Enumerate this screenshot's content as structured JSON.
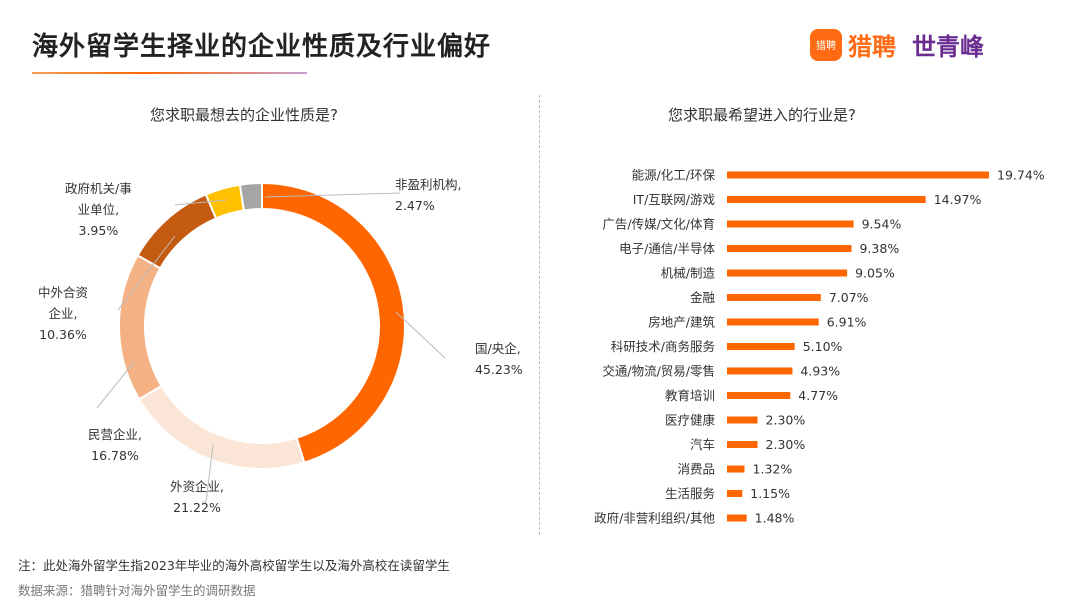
{
  "header": {
    "title": "海外留学生择业的企业性质及行业偏好",
    "logo_liepin_badge": "猎聘",
    "logo_liepin": "猎聘",
    "logo_sqf_mark": "ꗳ",
    "logo_sqf": "世青峰"
  },
  "chart_data": [
    {
      "type": "pie",
      "donut": true,
      "title": "您求职最想去的企业性质是?",
      "slices": [
        {
          "label": "国/央企",
          "value": 45.23,
          "display": "45.23%",
          "color": "#FF6600"
        },
        {
          "label": "外资企业",
          "value": 21.22,
          "display": "21.22%",
          "color": "#FBE5D6"
        },
        {
          "label": "民营企业",
          "value": 16.78,
          "display": "16.78%",
          "color": "#F4B183"
        },
        {
          "label": "中外合资企业",
          "value": 10.36,
          "display": "10.36%",
          "color": "#C55A11"
        },
        {
          "label": "政府机关/事业单位",
          "value": 3.95,
          "display": "3.95%",
          "color": "#FFC000"
        },
        {
          "label": "非盈利机构",
          "value": 2.47,
          "display": "2.47%",
          "color": "#A5A5A5"
        }
      ]
    },
    {
      "type": "bar",
      "orientation": "horizontal",
      "title": "您求职最希望进入的行业是?",
      "color": "#FF6600",
      "categories": [
        "能源/化工/环保",
        "IT/互联网/游戏",
        "广告/传媒/文化/体育",
        "电子/通信/半导体",
        "机械/制造",
        "金融",
        "房地产/建筑",
        "科研技术/商务服务",
        "交通/物流/贸易/零售",
        "教育培训",
        "医疗健康",
        "汽车",
        "消费品",
        "生活服务",
        "政府/非营利组织/其他"
      ],
      "values": [
        19.74,
        14.97,
        9.54,
        9.38,
        9.05,
        7.07,
        6.91,
        5.1,
        4.93,
        4.77,
        2.3,
        2.3,
        1.32,
        1.15,
        1.48
      ],
      "labels": [
        "19.74%",
        "14.97%",
        "9.54%",
        "9.38%",
        "9.05%",
        "7.07%",
        "6.91%",
        "5.10%",
        "4.93%",
        "4.77%",
        "2.30%",
        "2.30%",
        "1.32%",
        "1.15%",
        "1.48%"
      ]
    }
  ],
  "pie_labels": [
    {
      "lines": [
        "国/央企,",
        "45.23%"
      ]
    },
    {
      "lines": [
        "外资企业,",
        "21.22%"
      ]
    },
    {
      "lines": [
        "民营企业,",
        "16.78%"
      ]
    },
    {
      "lines": [
        "中外合资",
        "企业,",
        "10.36%"
      ]
    },
    {
      "lines": [
        "政府机关/事",
        "业单位,",
        "3.95%"
      ]
    },
    {
      "lines": [
        "非盈利机构,",
        "2.47%"
      ]
    }
  ],
  "footer": {
    "note": "注：此处海外留学生指2023年毕业的海外高校留学生以及海外高校在读留学生",
    "source": "数据来源：猎聘针对海外留学生的调研数据"
  }
}
